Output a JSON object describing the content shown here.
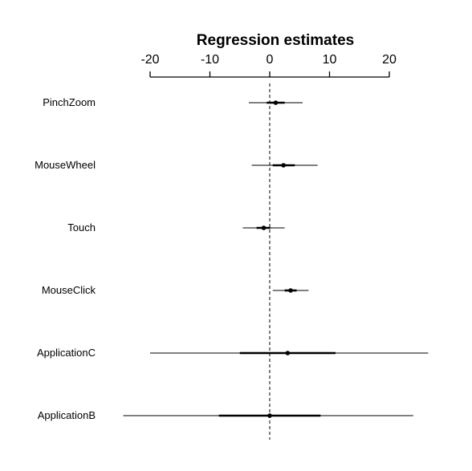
{
  "chart_data": {
    "type": "coefficient-plot",
    "title": "Regression estimates",
    "axis_position": "top",
    "xlim": [
      -20,
      20
    ],
    "ticks": [
      -20,
      -10,
      0,
      10,
      20
    ],
    "tick_labels": [
      "-20",
      "-10",
      "0",
      "10",
      "20"
    ],
    "reference_line": 0,
    "reference_line_style": "dashed",
    "series": [
      {
        "label": "PinchZoom",
        "estimate": 1.0,
        "inner": [
          -0.5,
          2.5
        ],
        "outer": [
          -3.5,
          5.5
        ]
      },
      {
        "label": "MouseWheel",
        "estimate": 2.3,
        "inner": [
          0.5,
          4.2
        ],
        "outer": [
          -3.0,
          8.0
        ]
      },
      {
        "label": "Touch",
        "estimate": -1.0,
        "inner": [
          -2.2,
          0.1
        ],
        "outer": [
          -4.5,
          2.5
        ]
      },
      {
        "label": "MouseClick",
        "estimate": 3.5,
        "inner": [
          2.5,
          4.5
        ],
        "outer": [
          0.5,
          6.5
        ]
      },
      {
        "label": "ApplicationC",
        "estimate": 3.0,
        "inner": [
          -5.0,
          11.0
        ],
        "outer": [
          -20.0,
          26.5
        ]
      },
      {
        "label": "ApplicationB",
        "estimate": 0.0,
        "inner": [
          -8.5,
          8.5
        ],
        "outer": [
          -24.5,
          24.0
        ]
      }
    ]
  }
}
